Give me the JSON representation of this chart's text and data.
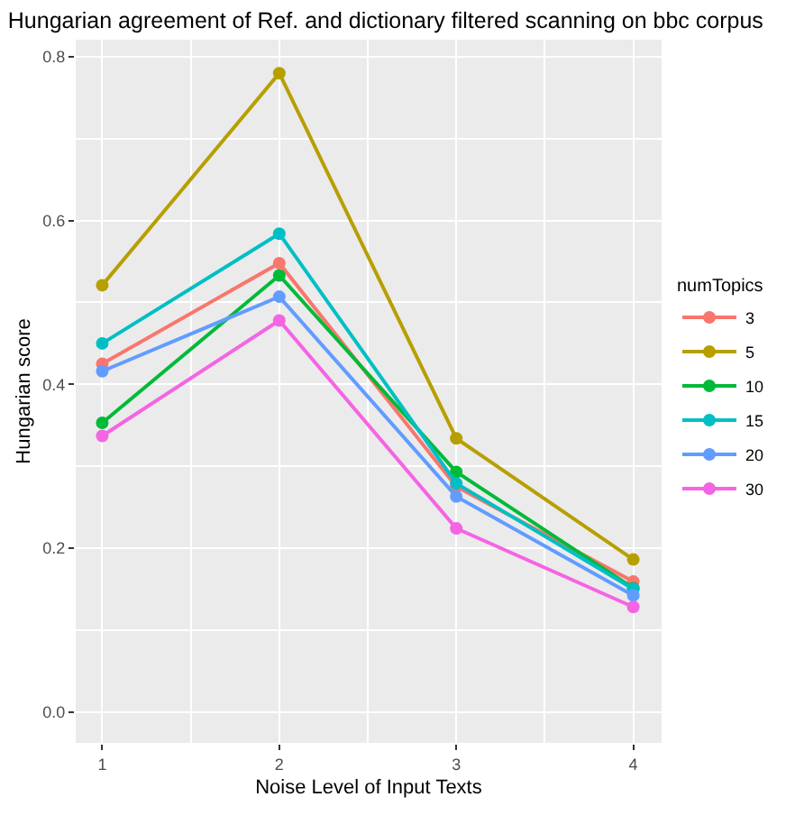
{
  "chart_data": {
    "type": "line",
    "title": "Hungarian agreement of Ref. and dictionary filtered scanning on bbc corpus",
    "xlabel": "Noise Level of Input Texts",
    "ylabel": "Hungarian score",
    "legend_title": "numTopics",
    "x": [
      1,
      2,
      3,
      4
    ],
    "series": [
      {
        "name": "3",
        "color": "#f8766d",
        "values": [
          0.425,
          0.548,
          0.275,
          0.159
        ]
      },
      {
        "name": "5",
        "color": "#b79f00",
        "values": [
          0.521,
          0.78,
          0.334,
          0.186
        ]
      },
      {
        "name": "10",
        "color": "#00ba38",
        "values": [
          0.353,
          0.533,
          0.293,
          0.151
        ]
      },
      {
        "name": "15",
        "color": "#00bfc4",
        "values": [
          0.45,
          0.584,
          0.279,
          0.15
        ]
      },
      {
        "name": "20",
        "color": "#619cff",
        "values": [
          0.416,
          0.507,
          0.263,
          0.142
        ]
      },
      {
        "name": "30",
        "color": "#f564e3",
        "values": [
          0.337,
          0.478,
          0.224,
          0.128
        ]
      }
    ],
    "xlim": [
      0.85,
      4.16
    ],
    "xticks": [
      1,
      2,
      3,
      4
    ],
    "ylim": [
      -0.038,
      0.821
    ],
    "yticks": [
      {
        "value": 0,
        "label": "0.0"
      },
      {
        "value": 0.2,
        "label": "0.2"
      },
      {
        "value": 0.4,
        "label": "0.4"
      },
      {
        "value": 0.6,
        "label": "0.6"
      },
      {
        "value": 0.8,
        "label": "0.8"
      }
    ],
    "grid": true,
    "legend": "right",
    "marker": "circle",
    "line_style": "solid"
  }
}
